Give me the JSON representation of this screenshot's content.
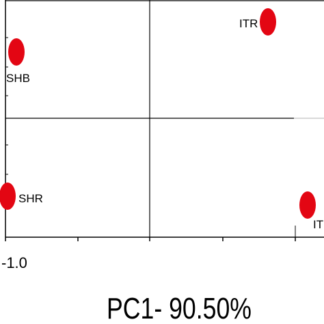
{
  "chart_data": {
    "type": "scatter",
    "title": "",
    "xlabel": "PC1- 90.50%",
    "ylabel": "",
    "x_tick_labels": [
      {
        "x": -1.0,
        "label": "-1.0"
      }
    ],
    "points": [
      {
        "label": "ITR",
        "x": 0.8,
        "y": 0.8
      },
      {
        "label": "SHB",
        "x": -0.95,
        "y": 0.55
      },
      {
        "label": "SHR",
        "x": -1.0,
        "y": -0.65
      },
      {
        "label": "IT",
        "x": 1.0,
        "y": -0.75
      }
    ],
    "grid": false,
    "reference_lines": {
      "x": 0,
      "y": 0
    },
    "point_color": "#e30613",
    "axis_color": "#000000",
    "guide_color": "#b0b0b0"
  }
}
